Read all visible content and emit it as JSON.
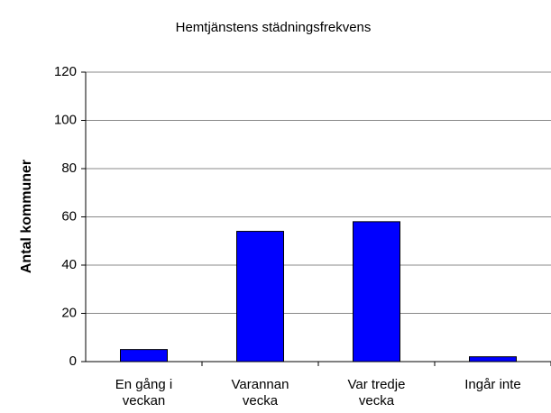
{
  "chart_data": {
    "type": "bar",
    "title": "Hemtjänstens städningsfrekvens",
    "y_label": "Antal kommuner",
    "categories": [
      "En gång i\nveckan",
      "Varannan\nvecka",
      "Var tredje\nvecka",
      "Ingår inte"
    ],
    "values": [
      5,
      54,
      58,
      2
    ],
    "color": "#0000ff",
    "ylim": [
      0,
      120
    ],
    "yticks": [
      0,
      20,
      40,
      60,
      80,
      100,
      120
    ],
    "grid": true
  }
}
